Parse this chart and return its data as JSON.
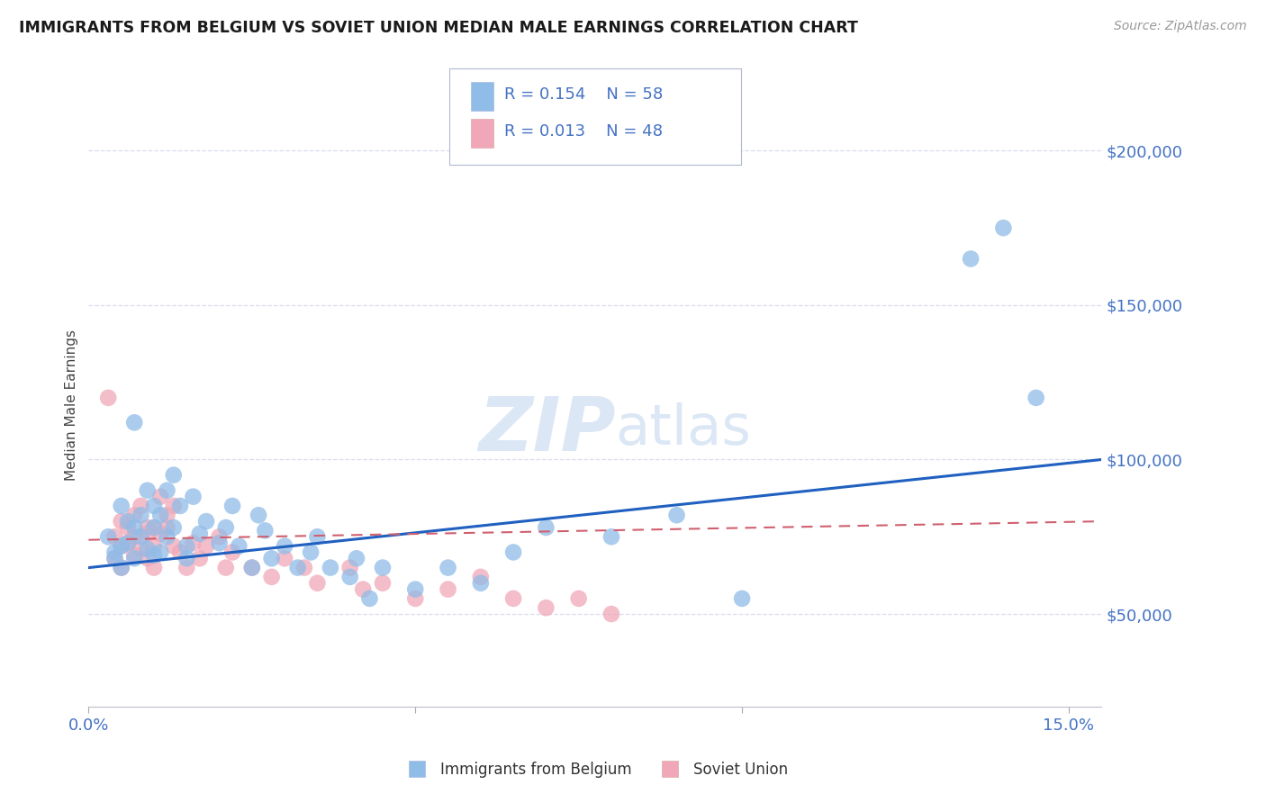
{
  "title": "IMMIGRANTS FROM BELGIUM VS SOVIET UNION MEDIAN MALE EARNINGS CORRELATION CHART",
  "source": "Source: ZipAtlas.com",
  "ylabel": "Median Male Earnings",
  "xlim": [
    0.0,
    0.155
  ],
  "ylim": [
    20000,
    215000
  ],
  "yticks": [
    50000,
    100000,
    150000,
    200000
  ],
  "ytick_labels": [
    "$50,000",
    "$100,000",
    "$150,000",
    "$200,000"
  ],
  "xticks": [
    0.0,
    0.05,
    0.1,
    0.15
  ],
  "xtick_labels": [
    "0.0%",
    "",
    "",
    "15.0%"
  ],
  "background_color": "#ffffff",
  "grid_color": "#d8ddf0",
  "belgium_color": "#90bce8",
  "soviet_color": "#f0a8b8",
  "belgium_label": "Immigrants from Belgium",
  "soviet_label": "Soviet Union",
  "legend_R_belgium": "R = 0.154",
  "legend_N_belgium": "N = 58",
  "legend_R_soviet": "R = 0.013",
  "legend_N_soviet": "N = 48",
  "watermark_zip": "ZIP",
  "watermark_atlas": "atlas",
  "axis_label_color": "#4472c4",
  "belgium_trend_color": "#2060c0",
  "soviet_trend_color": "#d06070",
  "belgium_x": [
    0.003,
    0.004,
    0.004,
    0.005,
    0.005,
    0.005,
    0.006,
    0.006,
    0.007,
    0.007,
    0.007,
    0.008,
    0.008,
    0.009,
    0.009,
    0.01,
    0.01,
    0.01,
    0.011,
    0.011,
    0.012,
    0.012,
    0.013,
    0.013,
    0.014,
    0.015,
    0.015,
    0.016,
    0.017,
    0.018,
    0.02,
    0.021,
    0.022,
    0.023,
    0.025,
    0.026,
    0.027,
    0.028,
    0.03,
    0.032,
    0.034,
    0.035,
    0.037,
    0.04,
    0.041,
    0.043,
    0.045,
    0.05,
    0.055,
    0.06,
    0.065,
    0.07,
    0.08,
    0.09,
    0.1,
    0.135,
    0.14,
    0.145
  ],
  "belgium_y": [
    75000,
    70000,
    68000,
    72000,
    65000,
    85000,
    80000,
    73000,
    78000,
    112000,
    68000,
    75000,
    82000,
    71000,
    90000,
    78000,
    85000,
    69000,
    82000,
    70000,
    90000,
    75000,
    95000,
    78000,
    85000,
    72000,
    68000,
    88000,
    76000,
    80000,
    73000,
    78000,
    85000,
    72000,
    65000,
    82000,
    77000,
    68000,
    72000,
    65000,
    70000,
    75000,
    65000,
    62000,
    68000,
    55000,
    65000,
    58000,
    65000,
    60000,
    70000,
    78000,
    75000,
    82000,
    55000,
    165000,
    175000,
    120000
  ],
  "soviet_x": [
    0.003,
    0.004,
    0.004,
    0.005,
    0.005,
    0.005,
    0.006,
    0.006,
    0.007,
    0.007,
    0.007,
    0.008,
    0.008,
    0.009,
    0.009,
    0.009,
    0.01,
    0.01,
    0.01,
    0.011,
    0.011,
    0.012,
    0.012,
    0.013,
    0.013,
    0.014,
    0.015,
    0.016,
    0.017,
    0.018,
    0.02,
    0.021,
    0.022,
    0.025,
    0.028,
    0.03,
    0.033,
    0.035,
    0.04,
    0.042,
    0.045,
    0.05,
    0.055,
    0.06,
    0.065,
    0.07,
    0.075,
    0.08
  ],
  "soviet_y": [
    120000,
    75000,
    68000,
    72000,
    65000,
    80000,
    73000,
    78000,
    69000,
    75000,
    82000,
    71000,
    85000,
    68000,
    76000,
    78000,
    78000,
    72000,
    65000,
    88000,
    76000,
    82000,
    78000,
    85000,
    72000,
    70000,
    65000,
    73000,
    68000,
    72000,
    75000,
    65000,
    70000,
    65000,
    62000,
    68000,
    65000,
    60000,
    65000,
    58000,
    60000,
    55000,
    58000,
    62000,
    55000,
    52000,
    55000,
    50000
  ],
  "belgium_trend_x": [
    0.0,
    0.155
  ],
  "belgium_trend_y": [
    65000,
    100000
  ],
  "soviet_trend_x": [
    0.0,
    0.155
  ],
  "soviet_trend_y": [
    74000,
    80000
  ]
}
